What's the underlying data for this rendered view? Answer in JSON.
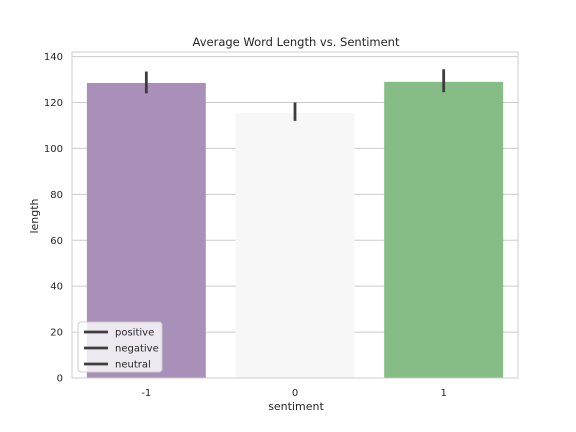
{
  "chart_data": {
    "type": "bar",
    "title": "Average Word Length vs. Sentiment",
    "xlabel": "sentiment",
    "ylabel": "length",
    "categories": [
      "-1",
      "0",
      "1"
    ],
    "values": [
      128.5,
      115.5,
      129
    ],
    "error_low": [
      124,
      112,
      124.5
    ],
    "error_high": [
      133.5,
      120,
      134.5
    ],
    "bar_colors": [
      "#a990b9",
      "#f7f7f7",
      "#86bc86"
    ],
    "ylim": [
      0,
      142
    ],
    "yticks": [
      0,
      20,
      40,
      60,
      80,
      100,
      120,
      140
    ],
    "grid": true,
    "legend": {
      "placement": "lower-left",
      "entries": [
        "positive",
        "negative",
        "neutral"
      ]
    }
  }
}
